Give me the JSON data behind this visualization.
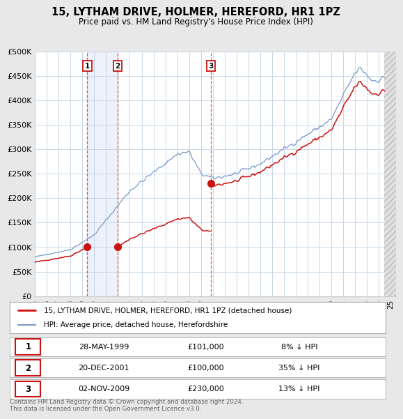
{
  "title": "15, LYTHAM DRIVE, HOLMER, HEREFORD, HR1 1PZ",
  "subtitle": "Price paid vs. HM Land Registry's House Price Index (HPI)",
  "background_color": "#e8e8e8",
  "plot_bg_color": "#ffffff",
  "grid_color": "#c8d8e8",
  "hpi_color": "#7799cc",
  "price_color": "#cc1111",
  "ylim": [
    0,
    500000
  ],
  "yticks": [
    0,
    50000,
    100000,
    150000,
    200000,
    250000,
    300000,
    350000,
    400000,
    450000,
    500000
  ],
  "ytick_labels": [
    "£0",
    "£50K",
    "£100K",
    "£150K",
    "£200K",
    "£250K",
    "£300K",
    "£350K",
    "£400K",
    "£450K",
    "£500K"
  ],
  "xlim_start": 1995.0,
  "xlim_end": 2025.5,
  "xtick_years": [
    1995,
    1996,
    1997,
    1998,
    1999,
    2000,
    2001,
    2002,
    2003,
    2004,
    2005,
    2006,
    2007,
    2008,
    2009,
    2010,
    2011,
    2012,
    2013,
    2014,
    2015,
    2016,
    2017,
    2018,
    2019,
    2020,
    2021,
    2022,
    2023,
    2024,
    2025
  ],
  "sale_dates": [
    1999.41,
    2001.97,
    2009.84
  ],
  "sale_prices": [
    101000,
    100000,
    230000
  ],
  "sale_labels": [
    "1",
    "2",
    "3"
  ],
  "vline_color": "#dd3333",
  "shade_color": "#bbccee",
  "legend_items": [
    {
      "label": "15, LYTHAM DRIVE, HOLMER, HEREFORD, HR1 1PZ (detached house)",
      "color": "#cc1111"
    },
    {
      "label": "HPI: Average price, detached house, Herefordshire",
      "color": "#7799cc"
    }
  ],
  "table_rows": [
    {
      "num": "1",
      "date": "28-MAY-1999",
      "price": "£101,000",
      "hpi": "8% ↓ HPI"
    },
    {
      "num": "2",
      "date": "20-DEC-2001",
      "price": "£100,000",
      "hpi": "35% ↓ HPI"
    },
    {
      "num": "3",
      "date": "02-NOV-2009",
      "price": "£230,000",
      "hpi": "13% ↓ HPI"
    }
  ],
  "footer_line1": "Contains HM Land Registry data © Crown copyright and database right 2024.",
  "footer_line2": "This data is licensed under the Open Government Licence v3.0."
}
